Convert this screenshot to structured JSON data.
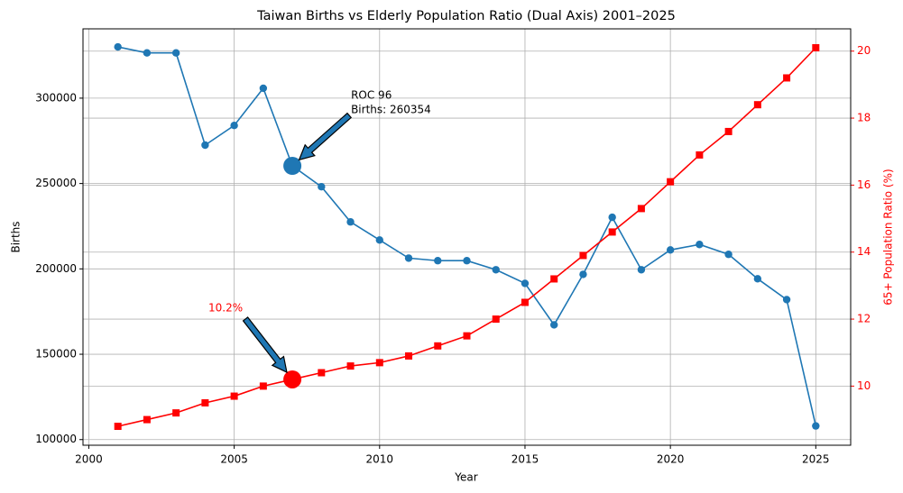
{
  "chart_data": {
    "type": "line",
    "title": "Taiwan Births vs Elderly Population Ratio (Dual Axis) 2001–2025",
    "x_label": "Year",
    "y_label": "Births",
    "y2_label": "65+ Population Ratio (%)",
    "x": [
      2001,
      2002,
      2003,
      2004,
      2005,
      2006,
      2007,
      2008,
      2009,
      2010,
      2011,
      2012,
      2013,
      2014,
      2015,
      2016,
      2017,
      2018,
      2019,
      2020,
      2021,
      2022,
      2023,
      2024,
      2025
    ],
    "series": [
      {
        "name": "Births",
        "color": "#1f77b4",
        "marker": "circle",
        "values": [
          330000,
          326500,
          326500,
          272500,
          284000,
          305800,
          260354,
          248100,
          227500,
          216900,
          206300,
          204800,
          204800,
          199500,
          191500,
          167200,
          196800,
          230200,
          199500,
          211100,
          214300,
          208500,
          194200,
          182000,
          108000
        ]
      },
      {
        "name": "65+ Population Ratio (%)",
        "color": "#ff0000",
        "marker": "square",
        "axis": "y2",
        "values": [
          8.8,
          9.0,
          9.2,
          9.5,
          9.7,
          10.0,
          10.2,
          10.4,
          10.6,
          10.7,
          10.9,
          11.2,
          11.5,
          12.0,
          12.5,
          13.2,
          13.9,
          14.6,
          15.3,
          16.1,
          16.9,
          17.6,
          18.4,
          19.2,
          20.1
        ]
      }
    ],
    "annotations": [
      {
        "lines": [
          "ROC 96",
          "Births: 260354"
        ],
        "x": 2007,
        "y": 260354,
        "color": "#1f77b4",
        "text_color": "#000000"
      },
      {
        "lines": [
          "10.2%"
        ],
        "x": 2007,
        "y": 10.2,
        "axis": "y2",
        "color": "#ff0000",
        "text_color": "#ff0000"
      }
    ],
    "xlim": [
      1999.8,
      2026.2
    ],
    "xticks": [
      2000,
      2005,
      2010,
      2015,
      2020,
      2025
    ],
    "ylim": [
      96700,
      340600
    ],
    "yticks": [
      100000,
      150000,
      200000,
      250000,
      300000
    ],
    "y2lim": [
      8.235,
      20.665
    ],
    "y2ticks": [
      10,
      12,
      14,
      16,
      18,
      20
    ],
    "y2_color": "#ff0000",
    "grid": true
  }
}
